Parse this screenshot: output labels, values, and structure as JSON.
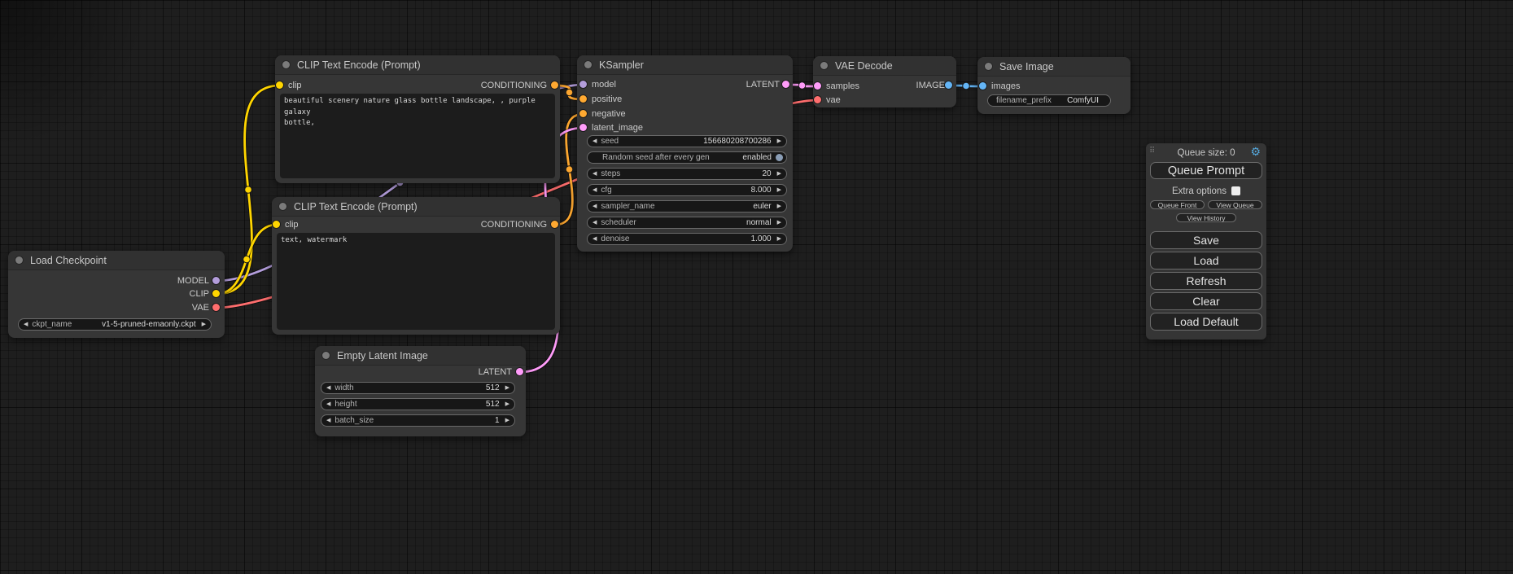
{
  "colors": {
    "model": "#B39DDB",
    "clip": "#FFD500",
    "vae": "#FF6E6E",
    "conditioning": "#FFA931",
    "latent": "#FF9CF9",
    "image": "#64B5F6",
    "toggle": "#8A9DB5",
    "gear": "#55A8DC"
  },
  "icons": {
    "gear": "⚙",
    "drag_handle": "⠿",
    "arrow_left": "◀",
    "arrow_right": "▶"
  },
  "nodes": {
    "load_checkpoint": {
      "title": "Load Checkpoint",
      "outputs": {
        "model": "MODEL",
        "clip": "CLIP",
        "vae": "VAE"
      },
      "widgets": {
        "ckpt_name": {
          "label": "ckpt_name",
          "value": "v1-5-pruned-emaonly.ckpt"
        }
      }
    },
    "clip_positive": {
      "title": "CLIP Text Encode (Prompt)",
      "input": "clip",
      "output": "CONDITIONING",
      "text": "beautiful scenery nature glass bottle landscape, , purple galaxy\nbottle,"
    },
    "clip_negative": {
      "title": "CLIP Text Encode (Prompt)",
      "input": "clip",
      "output": "CONDITIONING",
      "text": "text, watermark"
    },
    "ksampler": {
      "title": "KSampler",
      "inputs": {
        "model": "model",
        "positive": "positive",
        "negative": "negative",
        "latent_image": "latent_image"
      },
      "output": "LATENT",
      "widgets": {
        "seed": {
          "label": "seed",
          "value": "156680208700286"
        },
        "random_seed": {
          "label": "Random seed after every gen",
          "value": "enabled"
        },
        "steps": {
          "label": "steps",
          "value": "20"
        },
        "cfg": {
          "label": "cfg",
          "value": "8.000"
        },
        "sampler_name": {
          "label": "sampler_name",
          "value": "euler"
        },
        "scheduler": {
          "label": "scheduler",
          "value": "normal"
        },
        "denoise": {
          "label": "denoise",
          "value": "1.000"
        }
      }
    },
    "vae_decode": {
      "title": "VAE Decode",
      "inputs": {
        "samples": "samples",
        "vae": "vae"
      },
      "output": "IMAGE"
    },
    "save_image": {
      "title": "Save Image",
      "inputs": {
        "images": "images"
      },
      "widgets": {
        "filename_prefix": {
          "label": "filename_prefix",
          "value": "ComfyUI"
        }
      }
    },
    "empty_latent": {
      "title": "Empty Latent Image",
      "output": "LATENT",
      "widgets": {
        "width": {
          "label": "width",
          "value": "512"
        },
        "height": {
          "label": "height",
          "value": "512"
        },
        "batch_size": {
          "label": "batch_size",
          "value": "1"
        }
      }
    }
  },
  "queue_panel": {
    "queue_size": "Queue size: 0",
    "queue_prompt": "Queue Prompt",
    "extra_options": "Extra options",
    "queue_front": "Queue Front",
    "view_queue": "View Queue",
    "view_history": "View History",
    "save": "Save",
    "load": "Load",
    "refresh": "Refresh",
    "clear": "Clear",
    "load_default": "Load Default"
  }
}
